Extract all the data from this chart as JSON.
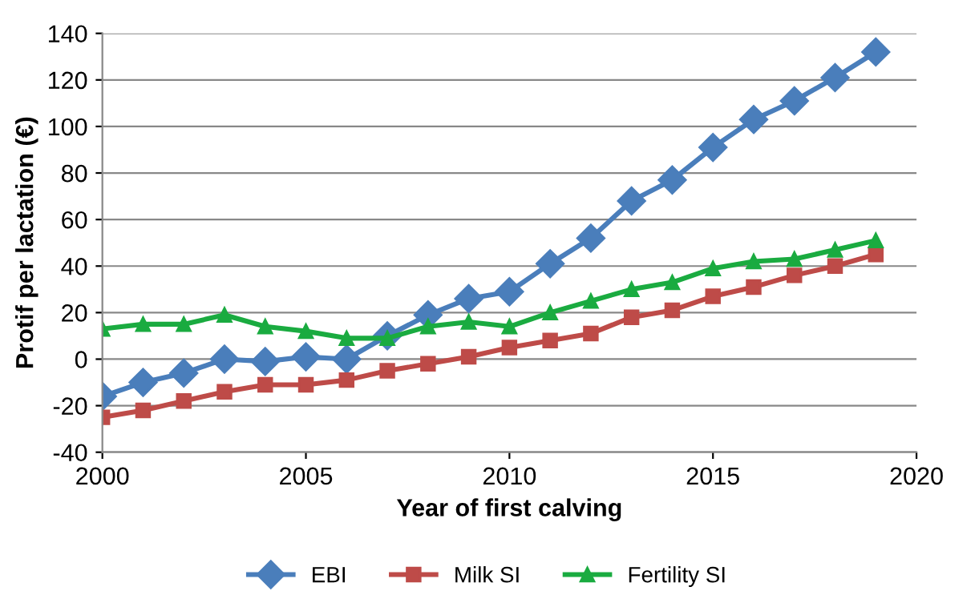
{
  "chart_data": {
    "type": "line",
    "xlabel": "Year of first calving",
    "ylabel": "Protif per lactation (€)",
    "x": [
      2000,
      2001,
      2002,
      2003,
      2004,
      2005,
      2006,
      2007,
      2008,
      2009,
      2010,
      2011,
      2012,
      2013,
      2014,
      2015,
      2016,
      2017,
      2018,
      2019
    ],
    "series": [
      {
        "name": "EBI",
        "color": "#4a7ebb",
        "marker": "diamond",
        "values": [
          -16,
          -10,
          -6,
          0,
          -1,
          1,
          0,
          10,
          19,
          26,
          29,
          41,
          52,
          68,
          77,
          91,
          103,
          111,
          121,
          132
        ]
      },
      {
        "name": "Milk SI",
        "color": "#be4b48",
        "marker": "square",
        "values": [
          -25,
          -22,
          -18,
          -14,
          -11,
          -11,
          -9,
          -5,
          -2,
          1,
          5,
          8,
          11,
          18,
          21,
          27,
          31,
          36,
          40,
          45
        ]
      },
      {
        "name": "Fertility SI",
        "color": "#1aab40",
        "marker": "triangle",
        "values": [
          13,
          15,
          15,
          19,
          14,
          12,
          9,
          9,
          14,
          16,
          14,
          20,
          25,
          30,
          33,
          39,
          42,
          43,
          47,
          51
        ]
      }
    ],
    "xlim": [
      2000,
      2020
    ],
    "xticks": [
      2000,
      2005,
      2010,
      2015,
      2020
    ],
    "ylim": [
      -40,
      140
    ],
    "yticks": [
      -40,
      -20,
      0,
      20,
      40,
      60,
      80,
      100,
      120,
      140
    ],
    "grid": "y",
    "legend": "bottom",
    "line_style": "solid"
  }
}
